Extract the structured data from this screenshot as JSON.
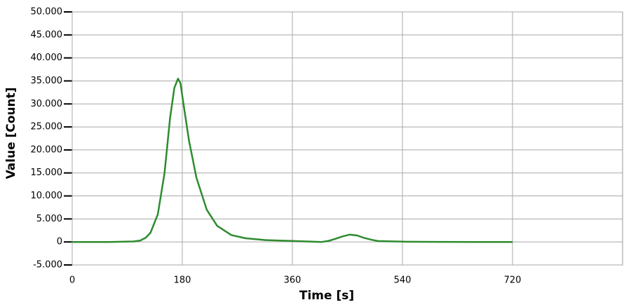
{
  "chart_data": {
    "type": "line",
    "x_label": "Time [s]",
    "y_label": "Value [Count]",
    "x": [
      0,
      60,
      100,
      111,
      120,
      128,
      140,
      151,
      160,
      167,
      173,
      177,
      182,
      191,
      203,
      220,
      237,
      260,
      283,
      317,
      363,
      408,
      420,
      431,
      442,
      454,
      466,
      477,
      490,
      500,
      546,
      600,
      660,
      720
    ],
    "series": [
      {
        "color": "#2e8b2e",
        "values": [
          0,
          0,
          100,
          300,
          900,
          2000,
          6000,
          15000,
          27000,
          33500,
          35500,
          34500,
          30000,
          22000,
          14000,
          7000,
          3500,
          1500,
          800,
          400,
          200,
          0,
          250,
          700,
          1200,
          1600,
          1400,
          900,
          450,
          200,
          50,
          20,
          0,
          0
        ]
      }
    ],
    "xlim": [
      0,
      900
    ],
    "xticks": [
      0,
      180,
      360,
      540,
      720
    ],
    "ylim": [
      -5000,
      50000
    ],
    "yticks": [
      {
        "value": -5000,
        "label": "-5.000"
      },
      0,
      {
        "value": 5000,
        "label": "5.000"
      },
      {
        "value": 10000,
        "label": "10.000"
      },
      {
        "value": 15000,
        "label": "15.000"
      },
      {
        "value": 20000,
        "label": "20.000"
      },
      {
        "value": 25000,
        "label": "25.000"
      },
      {
        "value": 30000,
        "label": "30.000"
      },
      {
        "value": 35000,
        "label": "35.000"
      },
      {
        "value": 40000,
        "label": "40.000"
      },
      {
        "value": 45000,
        "label": "45.000"
      },
      {
        "value": 50000,
        "label": "50.000"
      }
    ],
    "grid": true
  }
}
